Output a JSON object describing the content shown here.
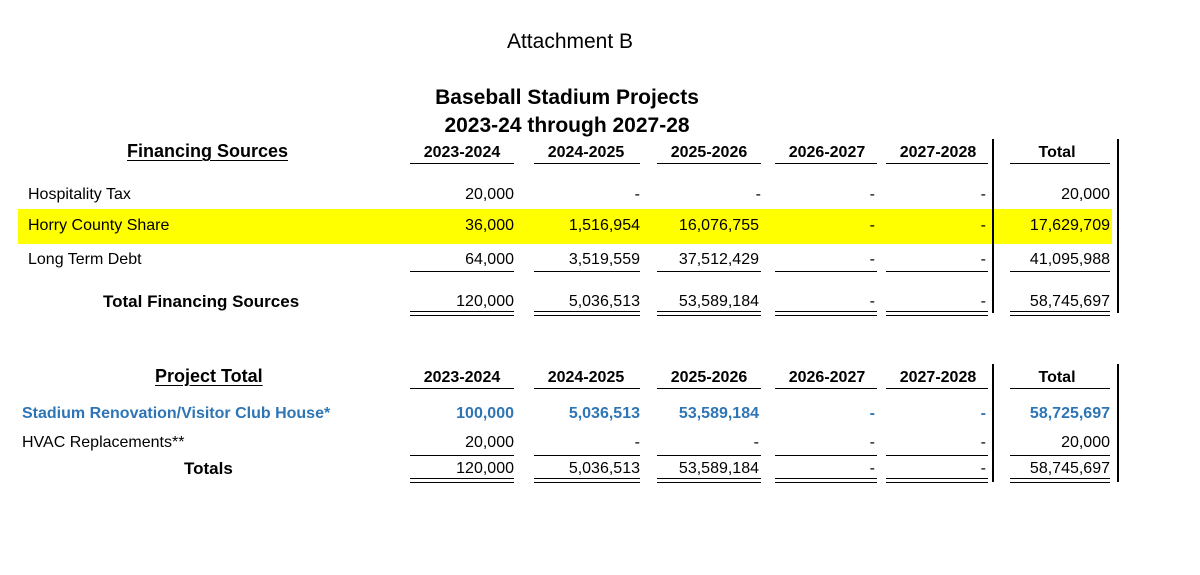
{
  "header": {
    "attachment": "Attachment B",
    "title_line1": "Baseball Stadium Projects",
    "title_line2": "2023-24 through 2027-28"
  },
  "financing": {
    "section_title": "Financing Sources",
    "columns": [
      "2023-2024",
      "2024-2025",
      "2025-2026",
      "2026-2027",
      "2027-2028",
      "Total"
    ],
    "rows": [
      {
        "label": "Hospitality Tax",
        "values": [
          "20,000",
          "-",
          "-",
          "-",
          "-",
          "20,000"
        ]
      },
      {
        "label": "Horry County Share",
        "values": [
          "36,000",
          "1,516,954",
          "16,076,755",
          "-",
          "-",
          "17,629,709"
        ]
      },
      {
        "label": "Long Term Debt",
        "values": [
          "64,000",
          "3,519,559",
          "37,512,429",
          "-",
          "-",
          "41,095,988"
        ]
      }
    ],
    "total": {
      "label": "Total Financing Sources",
      "values": [
        "120,000",
        "5,036,513",
        "53,589,184",
        "-",
        "-",
        "58,745,697"
      ]
    }
  },
  "projects": {
    "section_title": "Project Total",
    "columns": [
      "2023-2024",
      "2024-2025",
      "2025-2026",
      "2026-2027",
      "2027-2028",
      "Total"
    ],
    "rows": [
      {
        "label": "Stadium Renovation/Visitor Club House*",
        "values": [
          "100,000",
          "5,036,513",
          "53,589,184",
          "-",
          "-",
          "58,725,697"
        ]
      },
      {
        "label": "HVAC Replacements**",
        "values": [
          "20,000",
          "-",
          "-",
          "-",
          "-",
          "20,000"
        ]
      }
    ],
    "total": {
      "label": "Totals",
      "values": [
        "120,000",
        "5,036,513",
        "53,589,184",
        "-",
        "-",
        "58,745,697"
      ]
    }
  },
  "colors": {
    "highlight": "#ffff00",
    "link_blue": "#2e75b6"
  }
}
